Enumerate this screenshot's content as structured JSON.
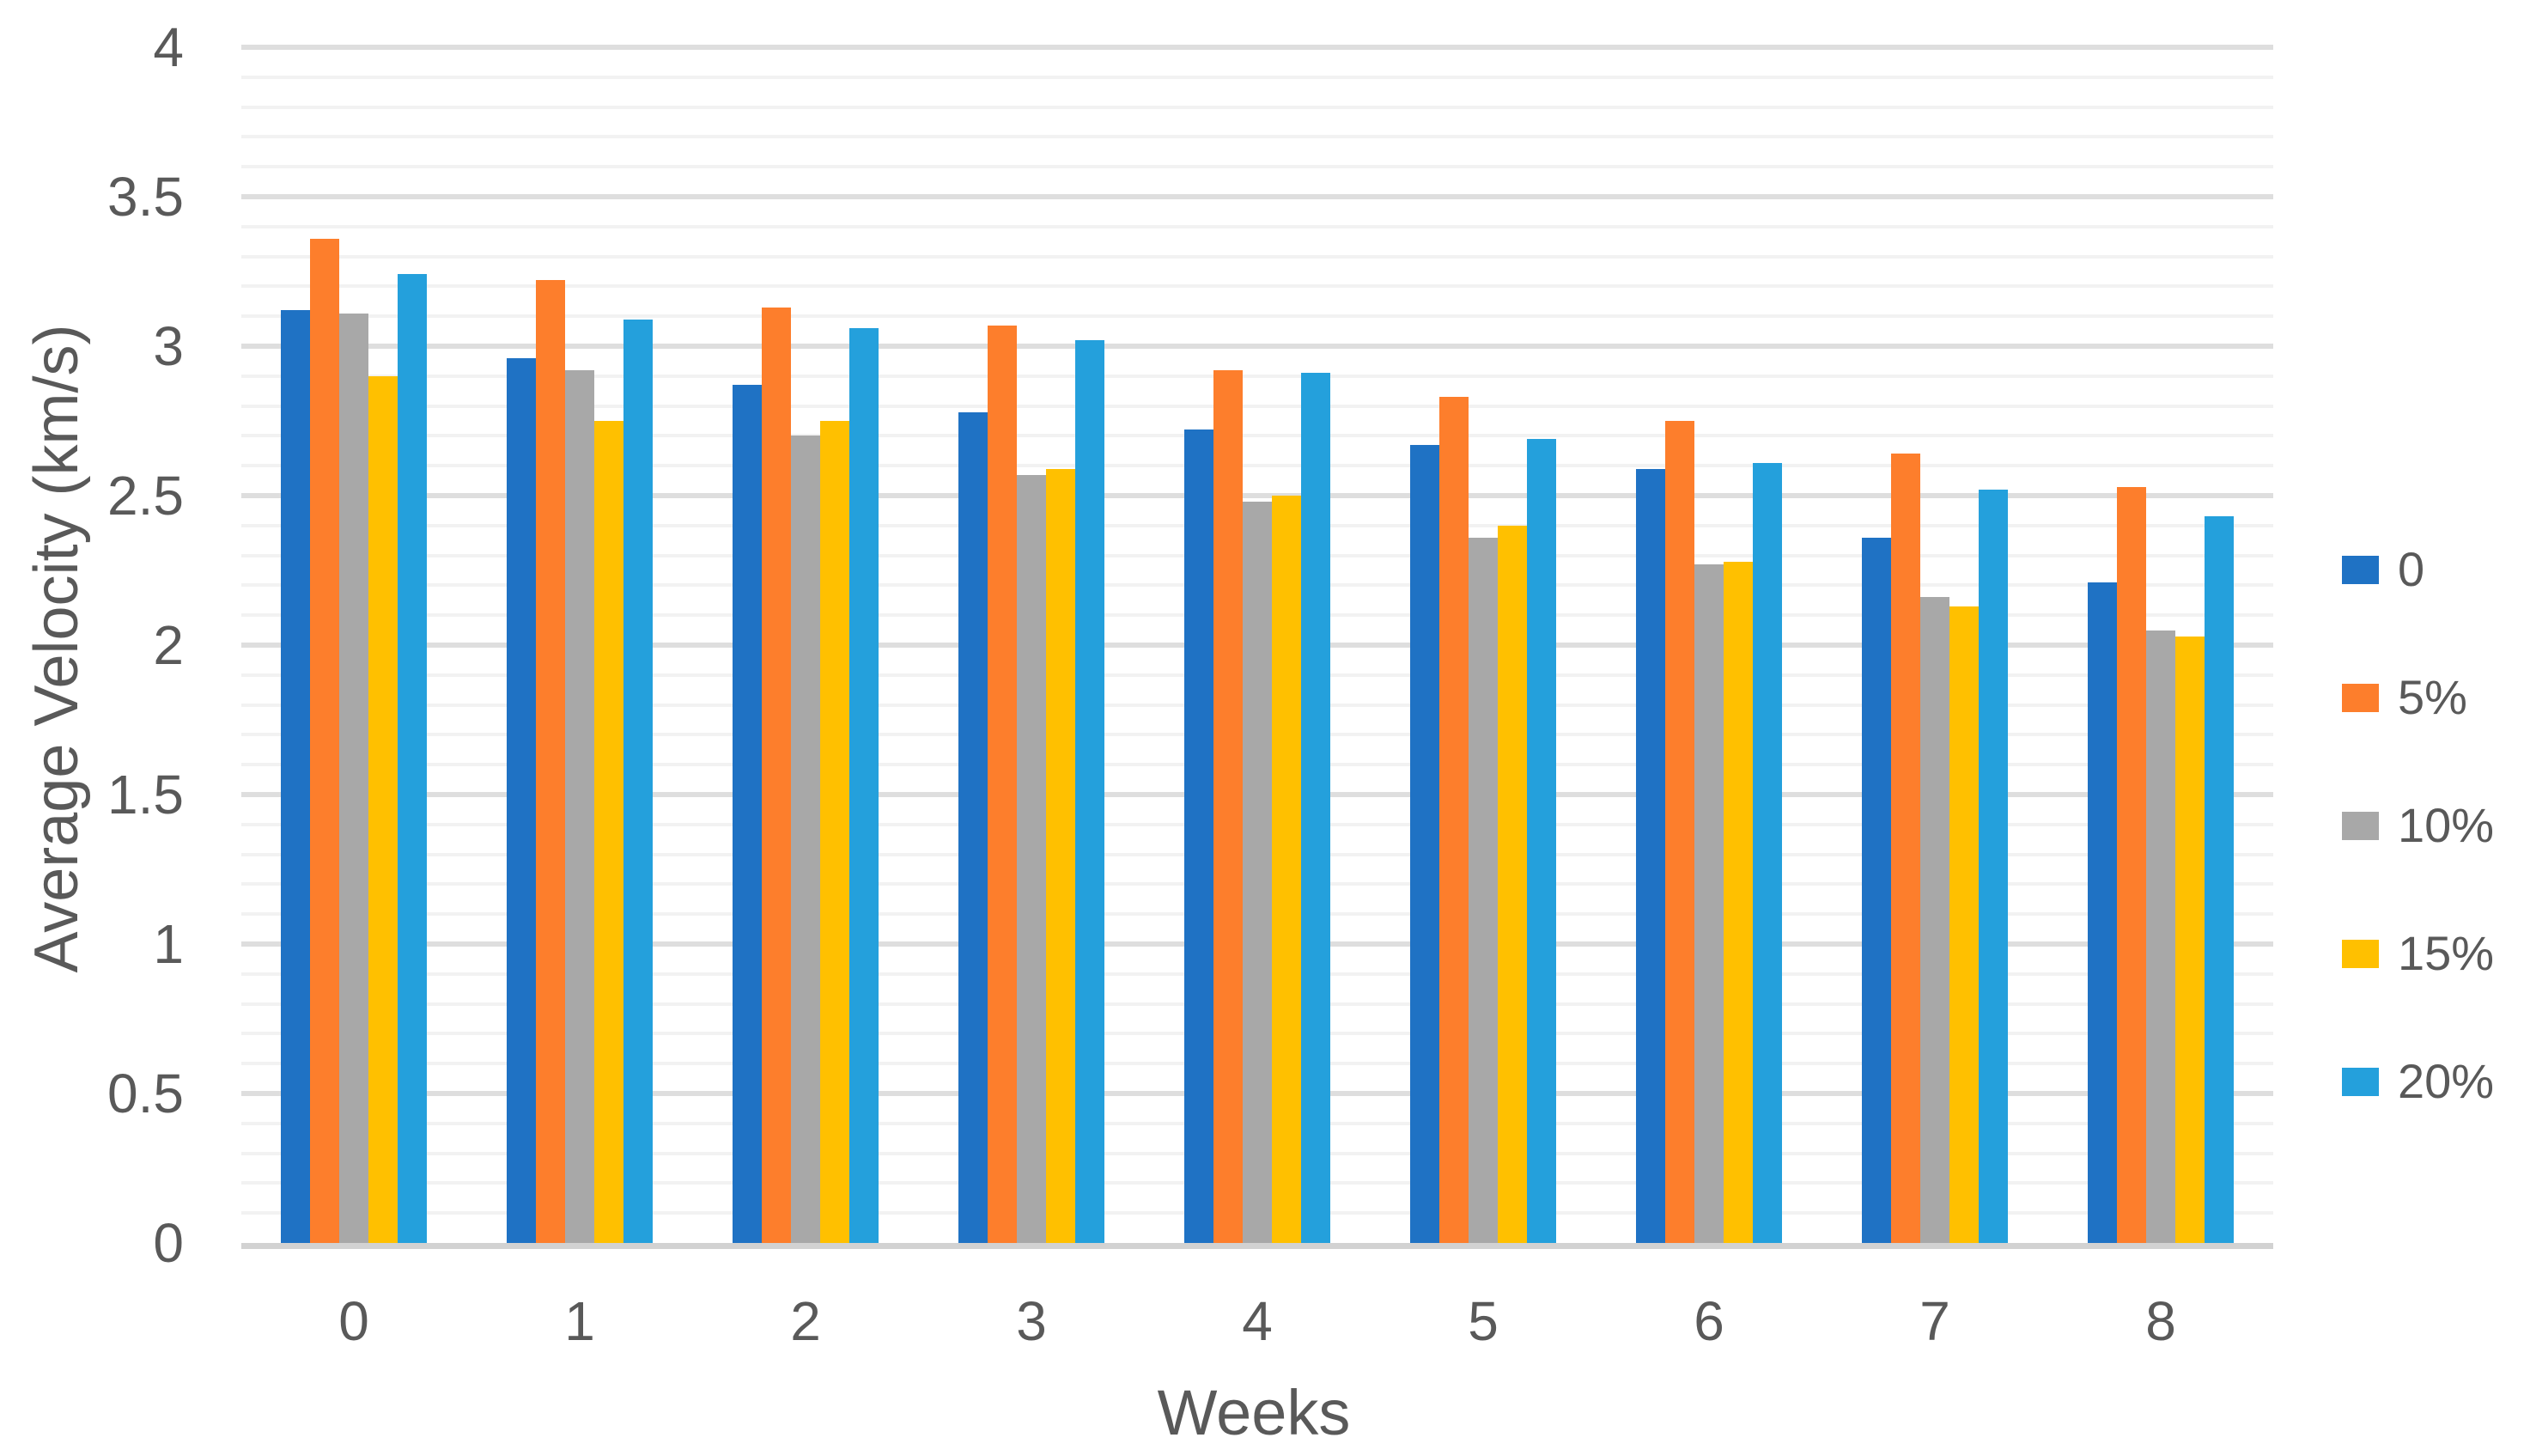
{
  "chart_data": {
    "type": "bar",
    "title": "",
    "xlabel": "Weeks",
    "ylabel": "Average Velocity (km/s)",
    "categories": [
      "0",
      "1",
      "2",
      "3",
      "4",
      "5",
      "6",
      "7",
      "8"
    ],
    "series": [
      {
        "name": "0",
        "color": "#1F72C4",
        "values": [
          3.12,
          2.96,
          2.87,
          2.78,
          2.72,
          2.67,
          2.59,
          2.36,
          2.21
        ]
      },
      {
        "name": "5%",
        "color": "#FD7E2C",
        "values": [
          3.36,
          3.22,
          3.13,
          3.07,
          2.92,
          2.83,
          2.75,
          2.64,
          2.53
        ]
      },
      {
        "name": "10%",
        "color": "#A8A8A8",
        "values": [
          3.11,
          2.92,
          2.7,
          2.57,
          2.48,
          2.36,
          2.27,
          2.16,
          2.05
        ]
      },
      {
        "name": "15%",
        "color": "#FFC000",
        "values": [
          2.9,
          2.75,
          2.75,
          2.59,
          2.5,
          2.4,
          2.28,
          2.13,
          2.03
        ]
      },
      {
        "name": "20%",
        "color": "#24A0DC",
        "values": [
          3.24,
          3.09,
          3.06,
          3.02,
          2.91,
          2.69,
          2.61,
          2.52,
          2.43
        ]
      }
    ],
    "y_axis": {
      "min": 0,
      "max": 4,
      "major_step": 0.5,
      "minor_step": 0.1,
      "tick_labels": [
        "0",
        "0.5",
        "1",
        "1.5",
        "2",
        "2.5",
        "3",
        "3.5",
        "4"
      ]
    },
    "legend": {
      "position": "right",
      "items": [
        "0",
        "5%",
        "10%",
        "15%",
        "20%"
      ]
    },
    "grid": {
      "show_major": true,
      "show_minor": true,
      "major_color": "#DEDEDE",
      "minor_color": "#F2F2F2",
      "axis_line_color": "#D2D2D2"
    },
    "text_color": "#595959",
    "background": "#FFFFFF"
  }
}
